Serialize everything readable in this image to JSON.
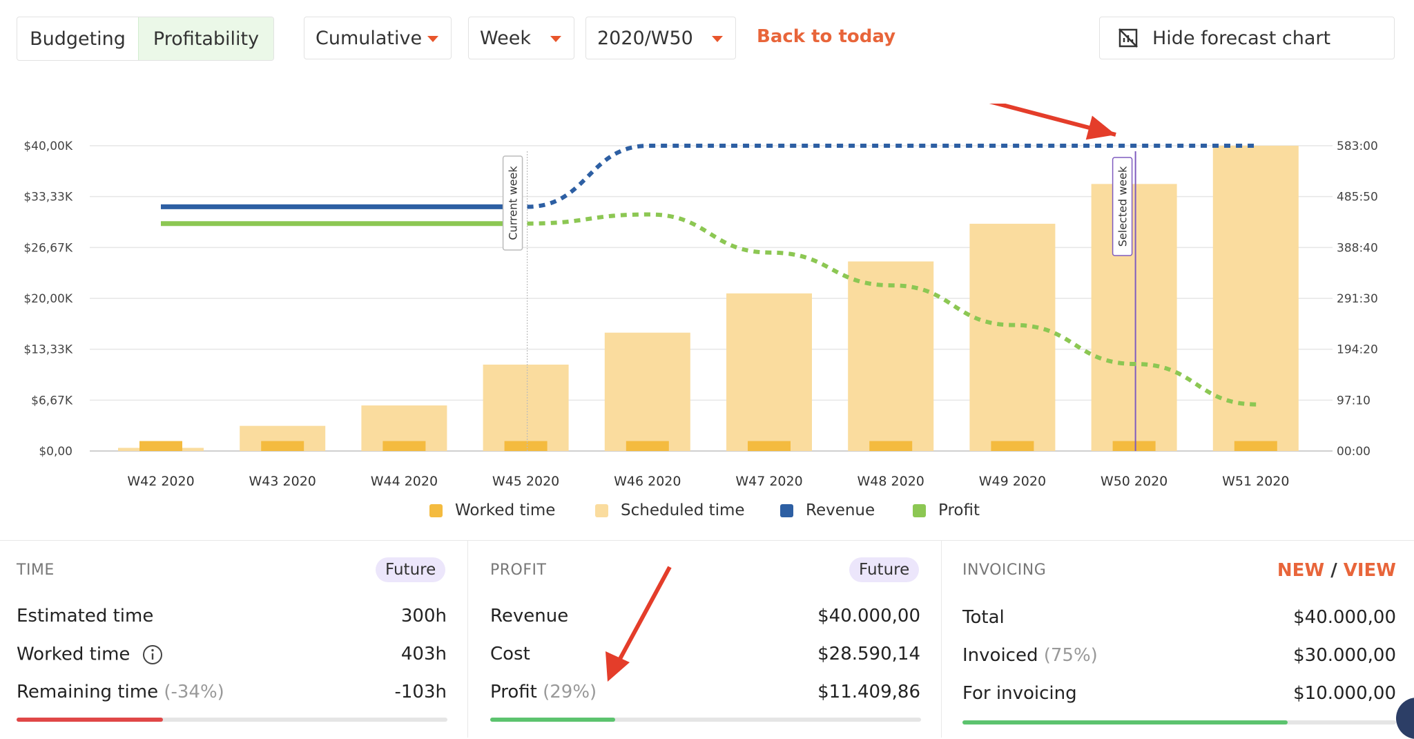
{
  "toolbar": {
    "tab_budgeting": "Budgeting",
    "tab_profitability": "Profitability",
    "mode_select": "Cumulative",
    "period_select": "Week",
    "week_select": "2020/W50",
    "back_link": "Back to today",
    "hide_button": "Hide forecast chart",
    "hide_icon": "no-chart-icon"
  },
  "chart_markers": {
    "current": "Current week",
    "selected": "Selected week"
  },
  "colors": {
    "accent": "#e8653a",
    "worked": "#f4bb3f",
    "scheduled": "#fadc9e",
    "revenue": "#2d5fa3",
    "profit": "#8cc753",
    "selected_line": "#7e5bbf",
    "annotation_arrow": "#e43d2a"
  },
  "chart_data": {
    "type": "bar",
    "categories": [
      "W42 2020",
      "W43 2020",
      "W44 2020",
      "W45 2020",
      "W46 2020",
      "W47 2020",
      "W48 2020",
      "W49 2020",
      "W50 2020",
      "W51 2020"
    ],
    "y_left_ticks": [
      "$0,00",
      "$6,67K",
      "$13,33K",
      "$20,00K",
      "$26,67K",
      "$33,33K",
      "$40,00K"
    ],
    "y_right_ticks": [
      "00:00",
      "97:10",
      "194:20",
      "291:30",
      "388:40",
      "485:50",
      "583:00"
    ],
    "ylim_left": [
      0,
      40000
    ],
    "ylim_right_hours": [
      0,
      583
    ],
    "series": [
      {
        "name": "Worked time",
        "axis": "right",
        "unit": "hours",
        "values": [
          19,
          19,
          19,
          19,
          19,
          19,
          19,
          19,
          19,
          19
        ]
      },
      {
        "name": "Scheduled time",
        "axis": "right",
        "unit": "hours",
        "values": [
          6,
          48,
          87,
          165,
          226,
          301,
          362,
          434,
          510,
          583
        ]
      },
      {
        "name": "Revenue",
        "axis": "left",
        "unit": "$",
        "style": "solid-then-dotted",
        "values": [
          32000,
          32000,
          32000,
          32000,
          40000,
          40000,
          40000,
          40000,
          40000,
          40000
        ]
      },
      {
        "name": "Profit",
        "axis": "left",
        "unit": "$",
        "style": "solid-then-dotted",
        "values": [
          29800,
          29800,
          29800,
          29800,
          31000,
          26000,
          21700,
          16500,
          11400,
          6100
        ]
      }
    ],
    "current_week": "W45 2020",
    "selected_week": "W50 2020",
    "legend": [
      {
        "label": "Worked time",
        "color": "#f4bb3f"
      },
      {
        "label": "Scheduled time",
        "color": "#fadc9e"
      },
      {
        "label": "Revenue",
        "color": "#2d5fa3"
      },
      {
        "label": "Profit",
        "color": "#8cc753"
      }
    ],
    "legend_position": "bottom-center",
    "grid": true
  },
  "time_panel": {
    "title": "TIME",
    "badge": "Future",
    "rows": [
      {
        "label": "Estimated time",
        "note": "",
        "value": "300h"
      },
      {
        "label": "Worked time",
        "note": "",
        "value": "403h"
      },
      {
        "label": "Remaining time",
        "note": "(-34%)",
        "value": "-103h"
      }
    ],
    "info_icon": "info-icon",
    "progress": 0.34,
    "progress_color": "#e04747"
  },
  "profit_panel": {
    "title": "PROFIT",
    "badge": "Future",
    "rows": [
      {
        "label": "Revenue",
        "note": "",
        "value": "$40.000,00"
      },
      {
        "label": "Cost",
        "note": "",
        "value": "$28.590,14"
      },
      {
        "label": "Profit",
        "note": "(29%)",
        "value": "$11.409,86"
      }
    ],
    "progress": 0.29,
    "progress_color": "#5cc36e"
  },
  "invoicing_panel": {
    "title": "INVOICING",
    "new_link": "NEW",
    "separator": "/",
    "view_link": "VIEW",
    "rows": [
      {
        "label": "Total",
        "note": "",
        "value": "$40.000,00"
      },
      {
        "label": "Invoiced",
        "note": "(75%)",
        "value": "$30.000,00"
      },
      {
        "label": "For invoicing",
        "note": "",
        "value": "$10.000,00"
      }
    ],
    "progress": 0.75,
    "progress_color": "#5cc36e"
  }
}
